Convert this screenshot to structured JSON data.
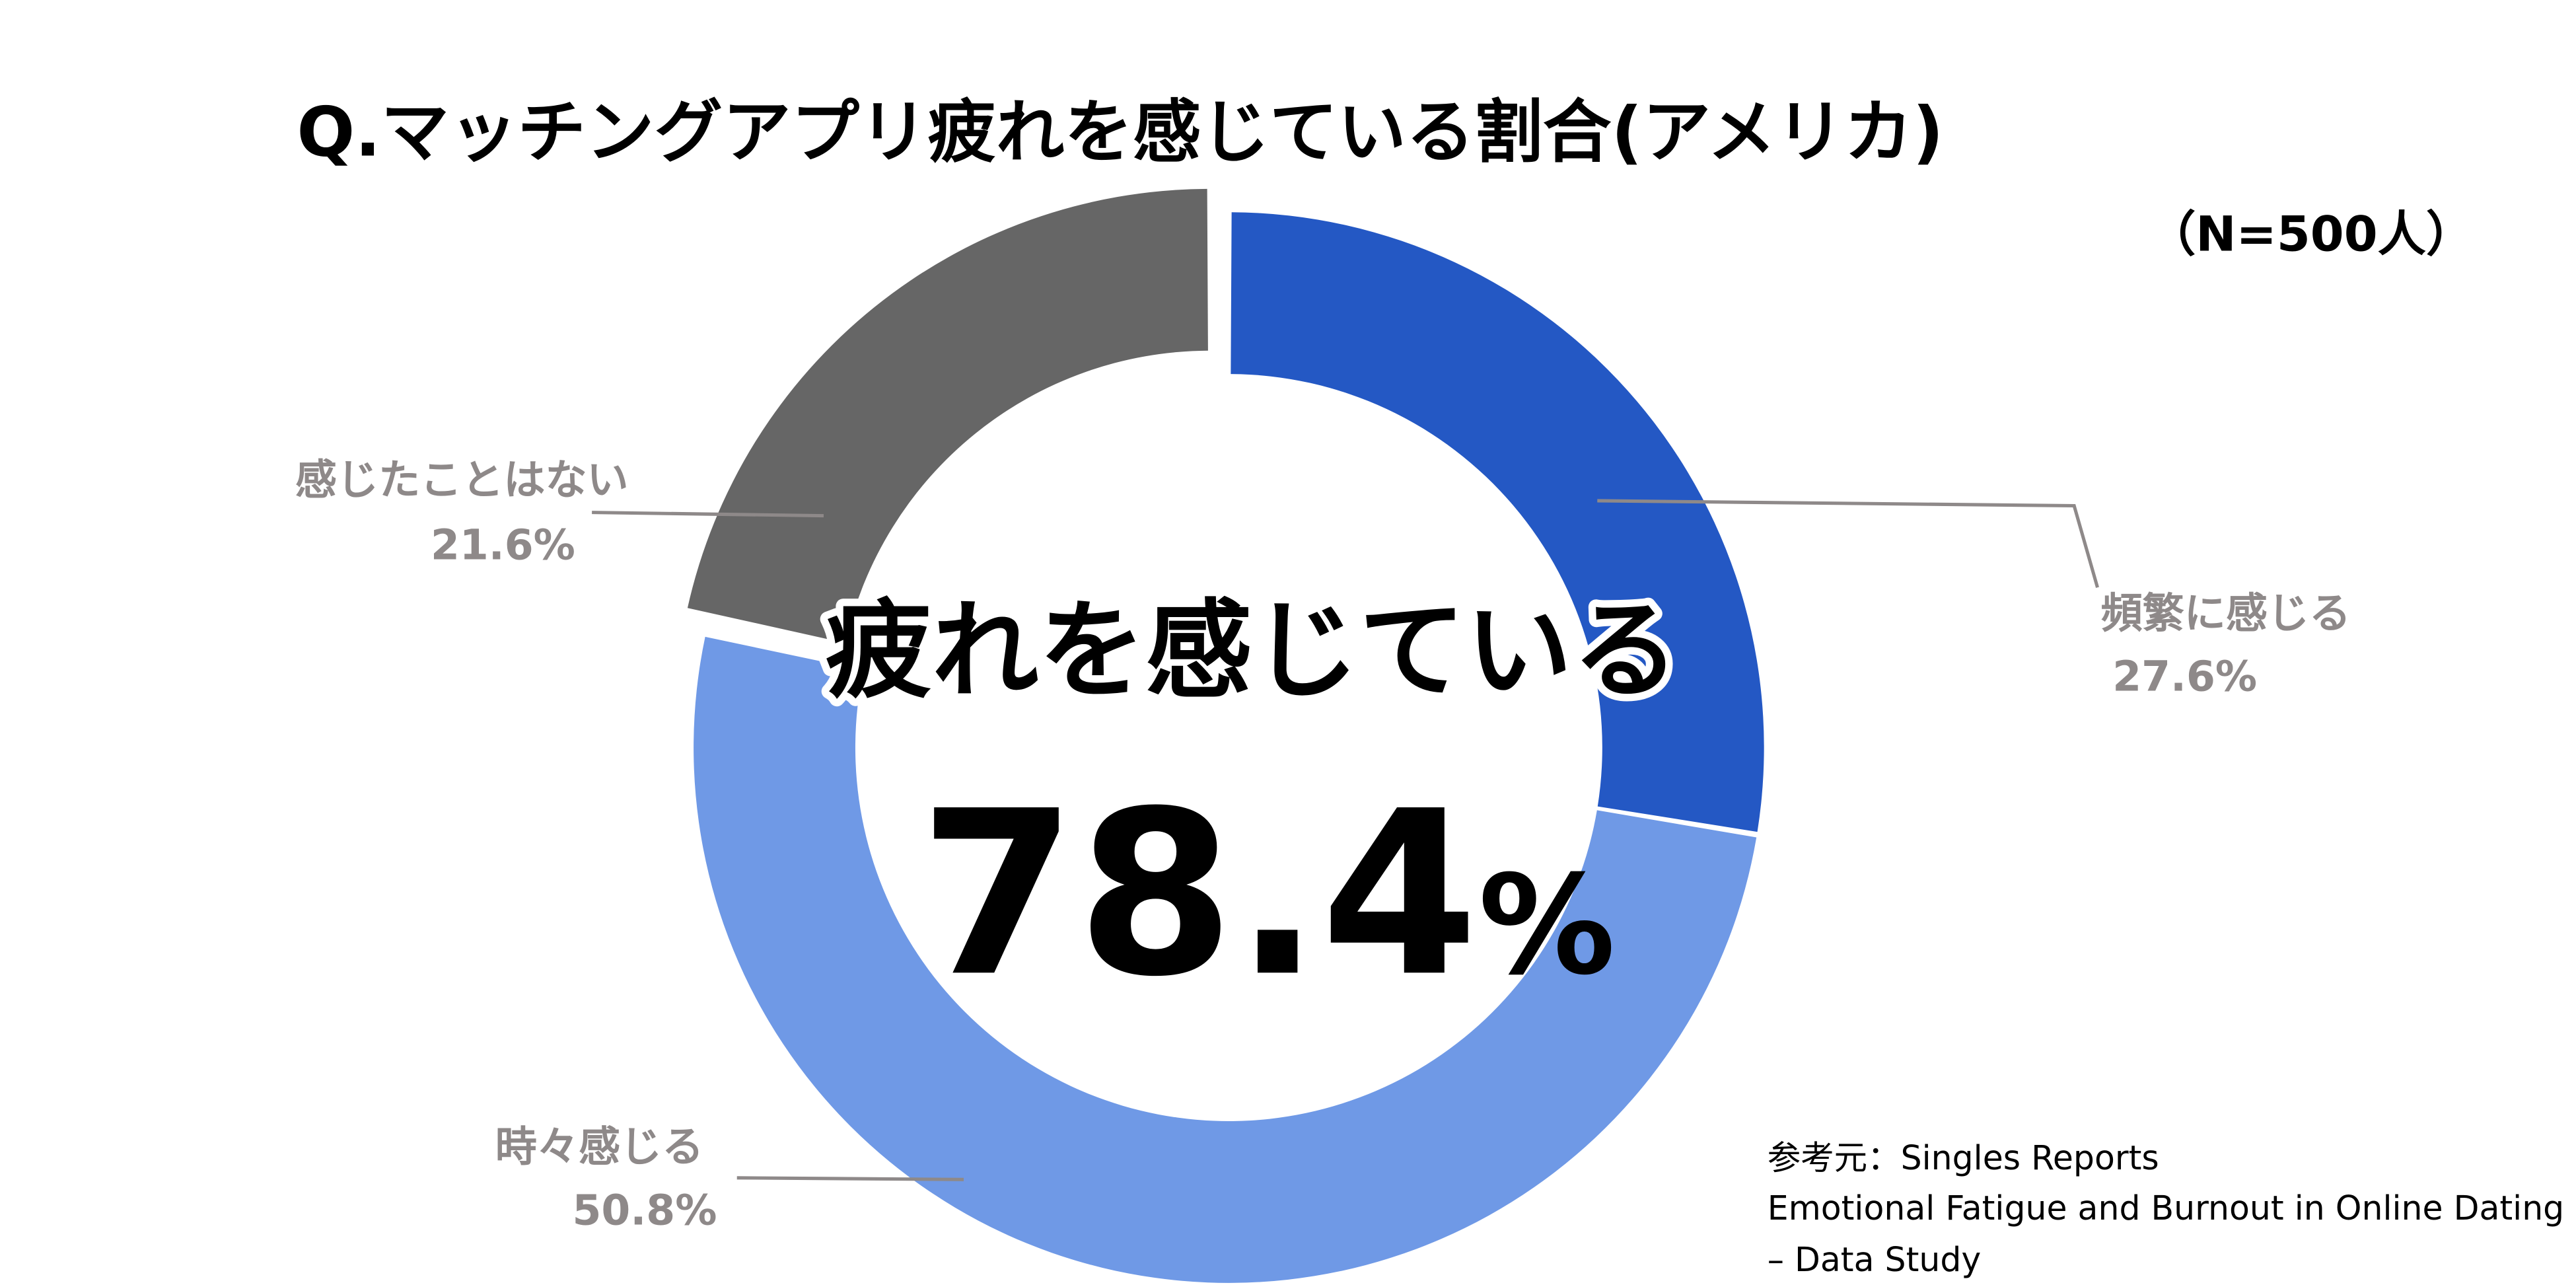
{
  "title": "Q.マッチングアプリ疲れを感じている割合(アメリカ)",
  "sample": "（N=500人）",
  "center_label": "疲れを感じている",
  "center_value": "78.4",
  "center_unit": "%",
  "source_lines": [
    "参考元：Singles Reports",
    "Emotional Fatigue and Burnout in Online Dating",
    "– Data Study"
  ],
  "chart_data": {
    "type": "pie",
    "variant": "donut",
    "categories": [
      "頻繁に感じる",
      "時々感じる",
      "感じたことはない"
    ],
    "values": [
      27.6,
      50.8,
      21.6
    ],
    "value_labels": [
      "27.6%",
      "50.8%",
      "21.6%"
    ],
    "colors": [
      "#2458C4",
      "#6F99E6",
      "#666666"
    ],
    "exploded": [
      false,
      false,
      true
    ],
    "label_color": "#8E8989",
    "leader_line_color": "#8E8989"
  }
}
